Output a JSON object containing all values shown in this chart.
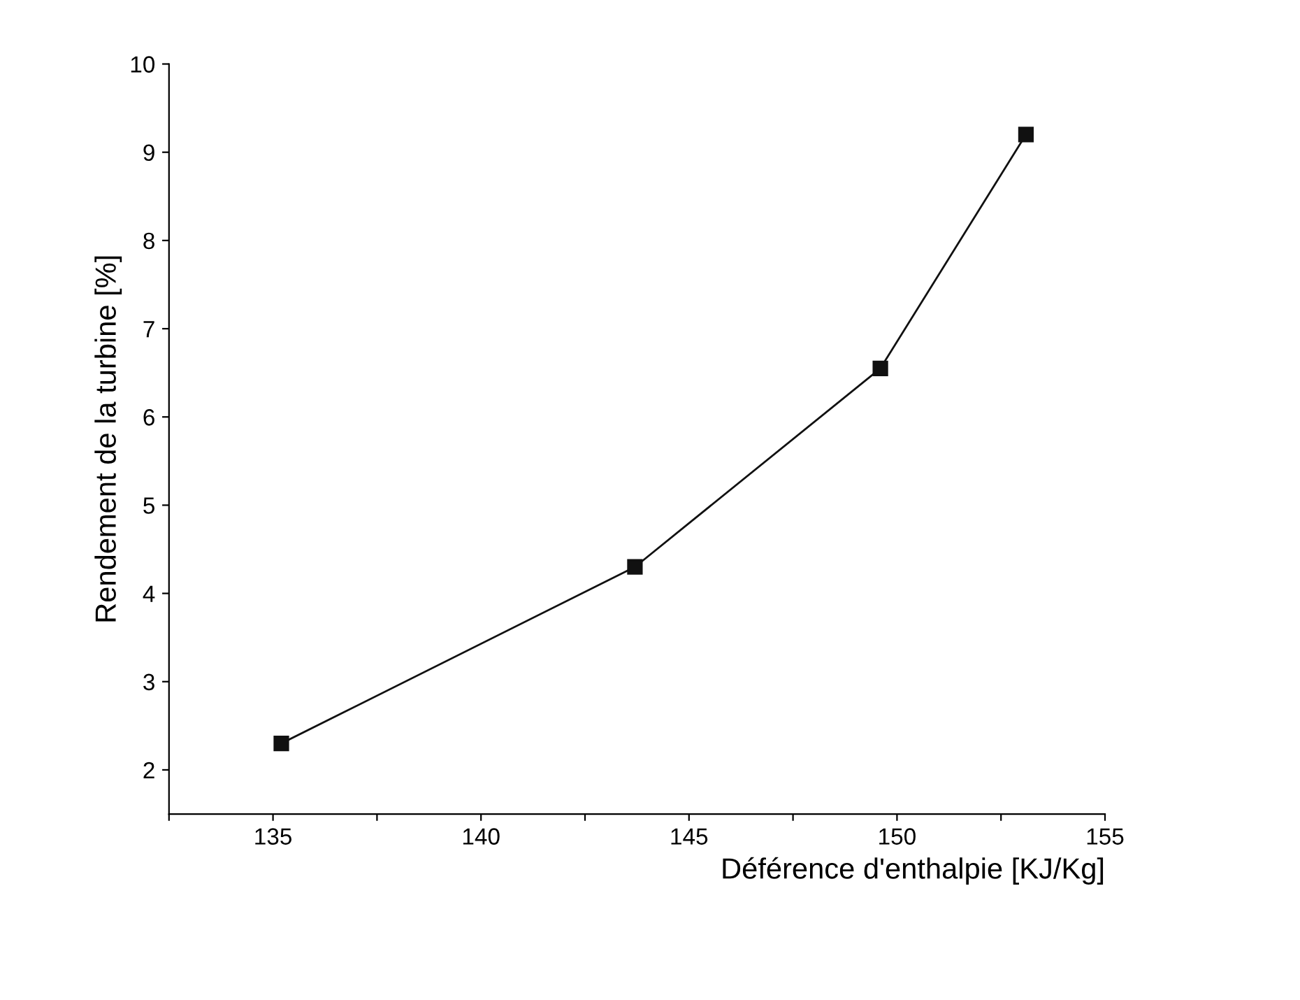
{
  "chart_data": {
    "type": "line",
    "xlabel": "Déférence d'enthalpie [KJ/Kg]",
    "ylabel": "Rendement de la turbine [%]",
    "x": [
      135.2,
      143.7,
      149.6,
      153.1
    ],
    "series": [
      {
        "color": "#111111",
        "values": [
          2.3,
          4.3,
          6.55,
          9.2
        ]
      }
    ],
    "marker": "square",
    "line_style": "solid",
    "grid": false,
    "legend": false,
    "xlim": [
      132.5,
      155
    ],
    "ylim": [
      1.5,
      10
    ],
    "xticks": [
      {
        "value": 132.5,
        "label": null
      },
      135,
      {
        "value": 137.5,
        "label": null
      },
      140,
      {
        "value": 142.5,
        "label": null
      },
      145,
      {
        "value": 147.5,
        "label": null
      },
      150,
      {
        "value": 152.5,
        "label": null
      },
      155
    ],
    "yticks": [
      2,
      3,
      4,
      5,
      6,
      7,
      8,
      9,
      10
    ]
  }
}
